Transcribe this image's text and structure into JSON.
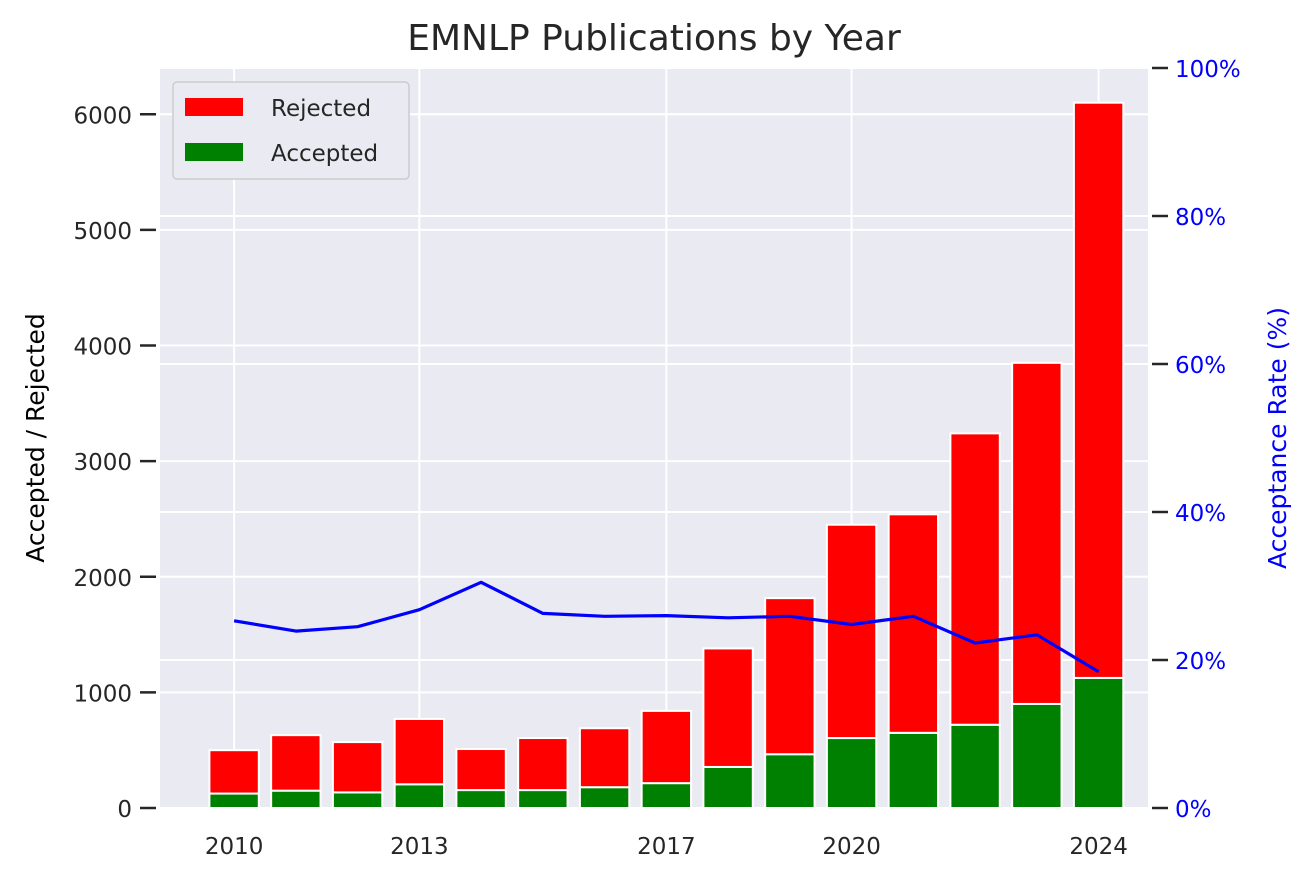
{
  "chart_data": {
    "type": "bar",
    "stacked": true,
    "title": "EMNLP Publications by Year",
    "ylabel": "Accepted / Rejected",
    "y2label": "Acceptance Rate (%)",
    "x": [
      2010,
      2011,
      2012,
      2013,
      2014,
      2015,
      2016,
      2017,
      2018,
      2019,
      2020,
      2021,
      2022,
      2023,
      2024
    ],
    "xticks": [
      "2010",
      "2013",
      "2017",
      "2020",
      "2024"
    ],
    "xlim": [
      2008.8,
      2024.8
    ],
    "ylim": [
      0,
      6400
    ],
    "yticks": [
      "0",
      "1000",
      "2000",
      "3000",
      "4000",
      "5000",
      "6000"
    ],
    "y2lim": [
      0,
      100
    ],
    "y2ticks": [
      "0%",
      "20%",
      "40%",
      "60%",
      "80%",
      "100%"
    ],
    "grid": true,
    "legend_position": "top-left",
    "series": [
      {
        "name": "Accepted",
        "kind": "bar",
        "color": "#008000",
        "values": [
          125,
          150,
          135,
          205,
          155,
          155,
          180,
          215,
          355,
          465,
          605,
          650,
          720,
          900,
          1125
        ]
      },
      {
        "name": "Rejected",
        "kind": "bar",
        "color": "#ff0000",
        "values": [
          375,
          480,
          435,
          565,
          355,
          450,
          510,
          625,
          1025,
          1350,
          1845,
          1890,
          2520,
          2950,
          4975
        ]
      },
      {
        "kind": "line",
        "axis": "right",
        "color": "#0000ff",
        "values": [
          25.3,
          23.9,
          24.5,
          26.8,
          30.5,
          26.3,
          25.9,
          26.0,
          25.7,
          25.9,
          24.8,
          25.9,
          22.3,
          23.4,
          18.4
        ]
      }
    ]
  }
}
